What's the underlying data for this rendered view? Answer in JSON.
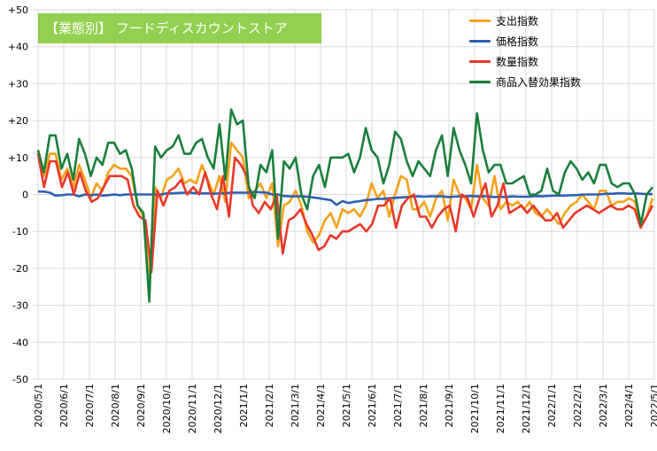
{
  "title": "【業態別】 フードディスカウントストア",
  "chart_data": {
    "type": "line",
    "title": "【業態別】 フードディスカウントストア",
    "y_ticks": [
      "+50",
      "+40",
      "+30",
      "+20",
      "+10",
      "0",
      "-10",
      "-20",
      "-30",
      "-40",
      "-50"
    ],
    "ylim": [
      -50,
      50
    ],
    "x_ticks": [
      "2020/5/1",
      "2020/6/1",
      "2020/7/1",
      "2020/8/1",
      "2020/9/1",
      "2020/10/1",
      "2020/11/1",
      "2020/12/1",
      "2021/1/1",
      "2021/2/1",
      "2021/3/1",
      "2021/4/1",
      "2021/5/1",
      "2021/6/1",
      "2021/7/1",
      "2021/8/1",
      "2021/9/1",
      "2021/10/1",
      "2021/11/1",
      "2021/12/1",
      "2022/1/1",
      "2022/2/1",
      "2022/3/1",
      "2022/4/1",
      "2022/5/1"
    ],
    "grid": true,
    "legend_position": "top-right",
    "series": [
      {
        "name": "支出指数",
        "color": "#f7a11a",
        "values": [
          12,
          5,
          11,
          11,
          4,
          7,
          2,
          8,
          4,
          -1,
          3,
          1,
          6,
          8,
          7,
          7,
          5,
          -3,
          -6,
          -23,
          2,
          -1,
          4,
          5,
          7,
          3,
          4,
          3,
          8,
          4,
          0,
          5,
          -2,
          14,
          12,
          10,
          -1,
          1,
          3,
          -1,
          3,
          -14,
          -3,
          -2,
          1,
          -3,
          -10,
          -13,
          -11,
          -7,
          -5,
          -9,
          -4,
          -5,
          -4,
          -6,
          -3,
          3,
          -1,
          1,
          -6,
          0,
          5,
          4,
          -4,
          -4,
          -2,
          -6,
          -1,
          1,
          -7,
          4,
          0,
          -1,
          -4,
          8,
          -1,
          -3,
          5,
          -4,
          -2,
          -3,
          -2,
          -4,
          -2,
          -5,
          -6,
          -4,
          -6,
          -8,
          -5,
          -3,
          -2,
          0,
          -2,
          -4,
          1,
          1,
          -3,
          -2,
          -2,
          -1,
          -2,
          -8,
          -6,
          -1
        ]
      },
      {
        "name": "価格指数",
        "color": "#2e5fb4",
        "values": [
          0.8,
          0.8,
          0.5,
          -0.3,
          -0.2,
          0,
          0,
          -0.5,
          0,
          -0.2,
          0,
          -0.3,
          -0.2,
          0,
          -0.2,
          0,
          0,
          0,
          0,
          0,
          0,
          0,
          0.3,
          0.3,
          0.4,
          0.5,
          0.5,
          0.3,
          0.3,
          0.3,
          0.2,
          0.3,
          0.3,
          0.5,
          0.5,
          0.5,
          0.5,
          0.7,
          0.6,
          0.5,
          0,
          0,
          -0.4,
          -0.5,
          -0.5,
          -0.5,
          -0.6,
          -0.8,
          -1,
          -1.3,
          -1.5,
          -2.8,
          -1.8,
          -2.3,
          -2,
          -1.8,
          -1.5,
          -1.4,
          -1.2,
          -1.2,
          -1,
          -0.9,
          -0.8,
          -0.7,
          -0.6,
          -0.5,
          -0.6,
          -0.5,
          -0.5,
          -0.5,
          -0.7,
          -0.6,
          -0.5,
          -0.5,
          -0.4,
          -0.5,
          -0.5,
          -0.5,
          -0.7,
          -0.6,
          -0.7,
          -0.5,
          -0.6,
          -0.6,
          -0.6,
          -0.4,
          -0.5,
          -0.4,
          -0.3,
          -0.3,
          -0.3,
          -0.2,
          -0.2,
          0,
          0,
          0,
          0,
          0.2,
          0.2,
          0.3,
          0.3,
          0.2,
          0.3,
          0.2,
          0.1,
          0.1
        ]
      },
      {
        "name": "数量指数",
        "color": "#e8382a",
        "values": [
          11,
          2,
          9,
          9,
          2,
          6,
          0,
          6,
          1,
          -2,
          -1,
          2,
          5,
          5,
          5,
          4,
          -3,
          -6,
          -7,
          -21,
          1,
          -3,
          1,
          2,
          4,
          0,
          2,
          0,
          6,
          0,
          -4,
          5,
          -6,
          10,
          8,
          5,
          -3,
          -5,
          -2,
          -4,
          0,
          -16,
          -7,
          -6,
          -4,
          -8,
          -11,
          -15,
          -14,
          -11,
          -12,
          -10,
          -10,
          -9,
          -8,
          -10,
          -8,
          -3,
          -3,
          -1,
          -9,
          -3,
          -1,
          0,
          -6,
          -6,
          -9,
          -6,
          -4,
          -3,
          -10,
          0,
          -1,
          -6,
          -1,
          3,
          -6,
          -3,
          3,
          -5,
          -4,
          -3,
          -5,
          -3,
          -5,
          -7,
          -7,
          -5,
          -9,
          -7,
          -5,
          -4,
          -3,
          -4,
          -5,
          -4,
          -3,
          -4,
          -4,
          -3,
          -4,
          -9,
          -6,
          -3
        ]
      },
      {
        "name": "商品入替効果指数",
        "color": "#1a7f3b",
        "values": [
          12,
          6,
          16,
          16,
          7,
          11,
          4,
          15,
          11,
          5,
          10,
          8,
          14,
          14,
          11,
          12,
          7,
          -3,
          -5,
          -29,
          13,
          10,
          12,
          13,
          16,
          11,
          11,
          14,
          15,
          10,
          7,
          19,
          4,
          23,
          19,
          20,
          2,
          -1,
          8,
          6,
          12,
          -12,
          9,
          7,
          10,
          0,
          -4,
          5,
          8,
          2,
          10,
          10,
          10,
          11,
          6,
          10,
          18,
          12,
          10,
          3,
          8,
          17,
          15,
          9,
          5,
          9,
          7,
          5,
          12,
          16,
          5,
          18,
          12,
          8,
          3,
          22,
          12,
          6,
          8,
          8,
          3,
          3,
          4,
          5,
          0,
          0,
          1,
          7,
          1,
          0,
          6,
          9,
          7,
          4,
          6,
          3,
          8,
          8,
          3,
          2,
          3,
          3,
          0,
          -8,
          0,
          2
        ]
      }
    ]
  }
}
